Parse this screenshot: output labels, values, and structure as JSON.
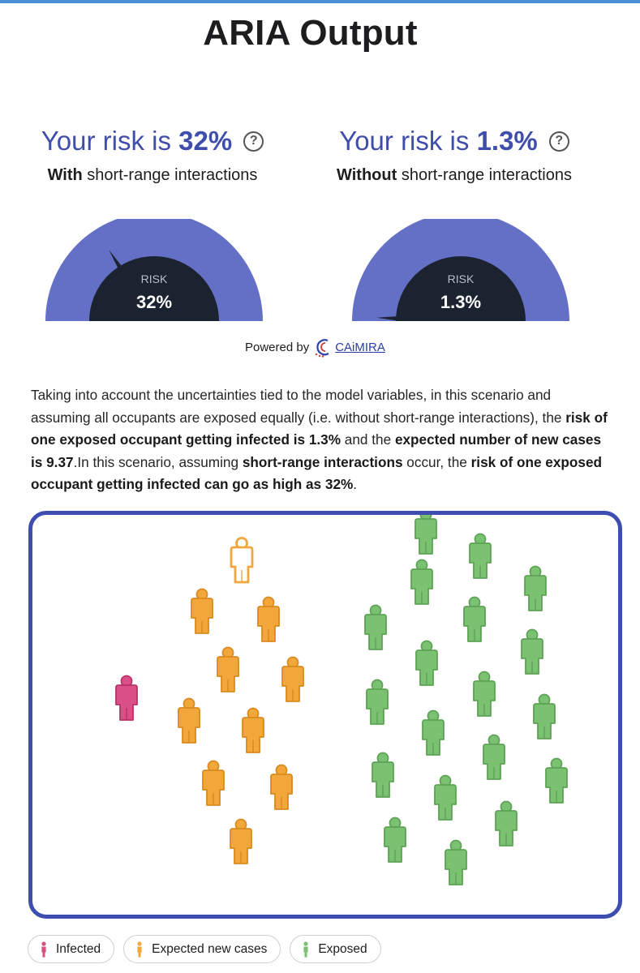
{
  "page": {
    "title": "ARIA Output"
  },
  "risk_with": {
    "prefix": "Your risk is ",
    "value": "32%",
    "subtitle_bold": "With",
    "subtitle_rest": " short-range interactions",
    "gauge_label": "RISK",
    "gauge_value": "32%",
    "gauge_fraction": 0.32
  },
  "risk_without": {
    "prefix": "Your risk is ",
    "value": "1.3%",
    "subtitle_bold": "Without",
    "subtitle_rest": " short-range interactions",
    "gauge_label": "RISK",
    "gauge_value": "1.3%",
    "gauge_fraction": 0.013
  },
  "help_icon_glyph": "?",
  "powered_by": {
    "text": "Powered by",
    "brand": "CAiMIRA"
  },
  "summary": {
    "p1": "Taking into account the uncertainties tied to the model variables, in this scenario and assuming all occupants are exposed equally (i.e. without short-range interactions), the ",
    "b1": "risk of one exposed occupant getting infected is 1.3%",
    "p2": " and the ",
    "b2": "expected number of new cases is 9.37",
    "p3": ".In this scenario, assuming ",
    "b3": "short-range interactions",
    "p4": " occur, the ",
    "b4": "risk of one exposed occupant getting infected can go as high as 32%",
    "p5": "."
  },
  "legend": {
    "infected": "Infected",
    "expected": "Expected new cases",
    "exposed": "Exposed"
  },
  "people_counts": {
    "infected": 1,
    "expected_new_cases": 9.37,
    "exposed": 22
  },
  "colors": {
    "gauge_arc": "#6470c6",
    "gauge_center": "#1c2330",
    "infected": "#d94f86",
    "expected": "#f2a73b",
    "exposed": "#7bc172",
    "frame": "#3e4db0",
    "heading": "#3f4eab"
  }
}
